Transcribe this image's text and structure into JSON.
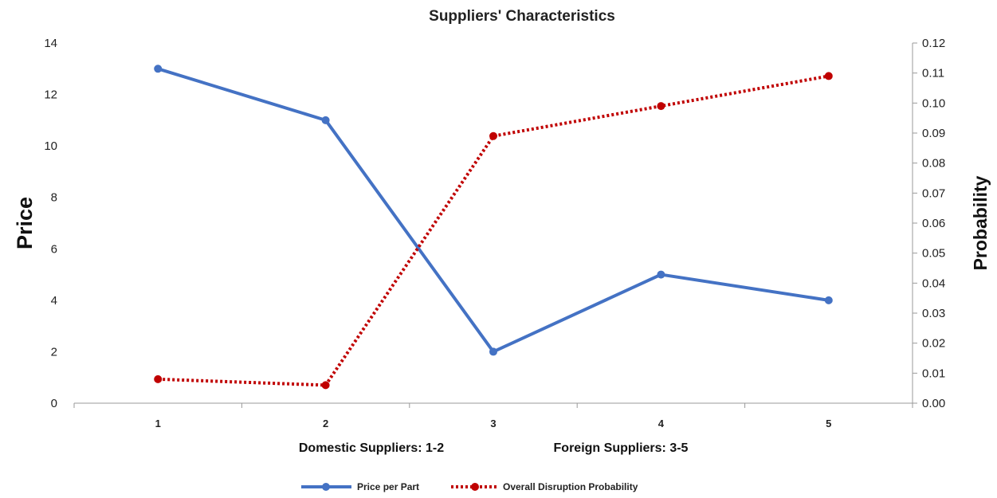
{
  "chart_data": {
    "type": "line",
    "title": "Suppliers' Characteristics",
    "categories": [
      "1",
      "2",
      "3",
      "4",
      "5"
    ],
    "ylabel": "Price",
    "y2label": "Probability",
    "ylim": [
      0,
      14
    ],
    "yticks": [
      "0",
      "2",
      "4",
      "6",
      "8",
      "10",
      "12",
      "14"
    ],
    "y2lim": [
      0,
      0.12
    ],
    "y2ticks": [
      "0.00",
      "0.01",
      "0.02",
      "0.03",
      "0.04",
      "0.05",
      "0.06",
      "0.07",
      "0.08",
      "0.09",
      "0.10",
      "0.11",
      "0.12"
    ],
    "annotations": [
      "Domestic Suppliers: 1-2",
      "Foreign Suppliers: 3-5"
    ],
    "grid": false,
    "legend_position": "bottom",
    "series": [
      {
        "name": "Price per Part",
        "axis": "left",
        "style": "solid",
        "color": "#4472C4",
        "values": [
          13,
          11,
          2,
          5,
          4
        ]
      },
      {
        "name": "Overall Disruption Probability",
        "axis": "right",
        "style": "dotted",
        "color": "#C00000",
        "values": [
          0.008,
          0.006,
          0.089,
          0.099,
          0.109
        ]
      }
    ]
  }
}
